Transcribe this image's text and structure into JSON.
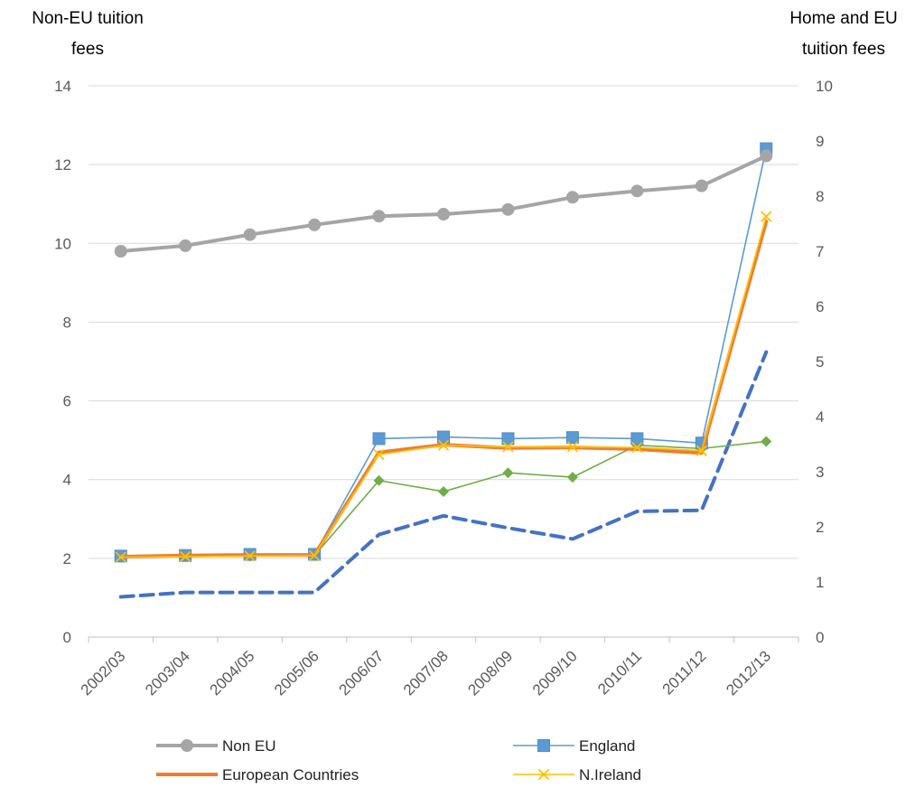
{
  "chart_data": {
    "type": "line",
    "left_axis_title": [
      "Non-EU tuition",
      "fees"
    ],
    "right_axis_title": [
      "Home and EU",
      "tuition fees"
    ],
    "categories": [
      "2002/03",
      "2003/04",
      "2004/05",
      "2005/06",
      "2006/07",
      "2007/08",
      "2008/09",
      "2009/10",
      "2010/11",
      "2011/12",
      "2012/13"
    ],
    "y_left": {
      "min": 0,
      "max": 14,
      "ticks": [
        0,
        2,
        4,
        6,
        8,
        10,
        12,
        14
      ]
    },
    "y_right": {
      "min": 0,
      "max": 10,
      "ticks": [
        0,
        1,
        2,
        3,
        4,
        5,
        6,
        7,
        8,
        9,
        10
      ]
    },
    "grid": "horizontal",
    "legend_position": "bottom",
    "series": [
      {
        "name": "Non EU",
        "axis": "left",
        "color": "#A5A5A5",
        "marker": "circle",
        "style": "thick",
        "values": [
          9.8,
          9.94,
          10.22,
          10.47,
          10.69,
          10.74,
          10.86,
          11.17,
          11.33,
          11.46,
          12.22
        ]
      },
      {
        "name": "England",
        "axis": "right",
        "color": "#5B9BD5",
        "marker": "square",
        "style": "thin",
        "values": [
          1.47,
          1.48,
          1.5,
          1.5,
          3.6,
          3.63,
          3.6,
          3.62,
          3.6,
          3.52,
          8.86
        ]
      },
      {
        "name": "European Countries",
        "axis": "right",
        "color": "#ED7D31",
        "marker": "none",
        "style": "thick",
        "values": [
          1.46,
          1.48,
          1.49,
          1.49,
          3.35,
          3.49,
          3.43,
          3.44,
          3.41,
          3.34,
          7.54
        ]
      },
      {
        "name": "N.Ireland",
        "axis": "right",
        "color": "#FFC000",
        "marker": "x",
        "style": "thin",
        "values": [
          1.45,
          1.46,
          1.47,
          1.48,
          3.31,
          3.48,
          3.45,
          3.45,
          3.44,
          3.38,
          7.63
        ]
      },
      {
        "name": "",
        "axis": "right",
        "color": "#70AD47",
        "marker": "diamond",
        "style": "thin",
        "values": [
          1.45,
          1.46,
          1.47,
          1.48,
          2.84,
          2.64,
          2.98,
          2.9,
          3.48,
          3.42,
          3.55
        ]
      },
      {
        "name": "",
        "axis": "right",
        "color": "#4472C4",
        "marker": "none",
        "style": "dashed",
        "values": [
          0.73,
          0.81,
          0.81,
          0.81,
          1.86,
          2.2,
          1.98,
          1.78,
          2.28,
          2.3,
          5.17
        ]
      }
    ],
    "legend": [
      {
        "name": "Non EU",
        "color": "#A5A5A5",
        "marker": "circle",
        "style": "thick"
      },
      {
        "name": "England",
        "color": "#5B9BD5",
        "marker": "square",
        "style": "thin"
      },
      {
        "name": "European Countries",
        "color": "#ED7D31",
        "marker": "none",
        "style": "thick"
      },
      {
        "name": "N.Ireland",
        "color": "#FFC000",
        "marker": "x",
        "style": "thin"
      }
    ]
  }
}
